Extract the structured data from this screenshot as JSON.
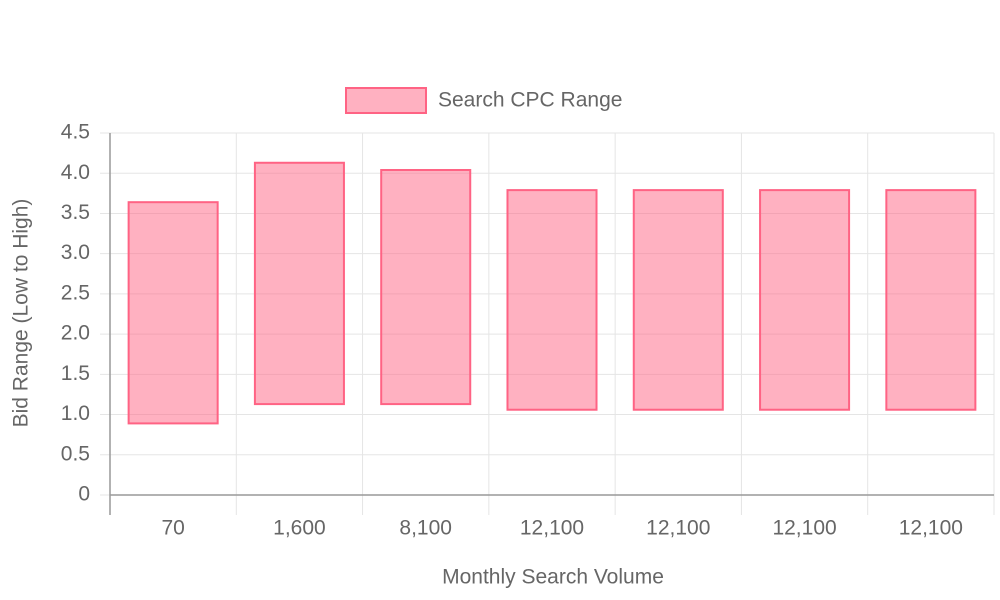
{
  "chart_data": {
    "type": "floating-bar",
    "x_label": "Monthly Search Volume",
    "y_label": "Bid Range (Low to High)",
    "categories": [
      "70",
      "1,600",
      "8,100",
      "12,100",
      "12,100",
      "12,100",
      "12,100"
    ],
    "series": [
      {
        "name": "Search CPC Range",
        "color": "#ff6384",
        "values": [
          [
            0.89,
            3.64
          ],
          [
            1.13,
            4.13
          ],
          [
            1.13,
            4.04
          ],
          [
            1.06,
            3.79
          ],
          [
            1.06,
            3.79
          ],
          [
            1.06,
            3.79
          ],
          [
            1.06,
            3.79
          ]
        ]
      }
    ],
    "ylim": [
      0,
      4.5
    ],
    "yticks": [
      0,
      0.5,
      {
        "value": 1,
        "label": "1.0"
      },
      1.5,
      {
        "value": 2,
        "label": "2.0"
      },
      2.5,
      {
        "value": 3,
        "label": "3.0"
      },
      3.5,
      {
        "value": 4,
        "label": "4.0"
      },
      4.5
    ],
    "grid": true,
    "legend": "top"
  }
}
